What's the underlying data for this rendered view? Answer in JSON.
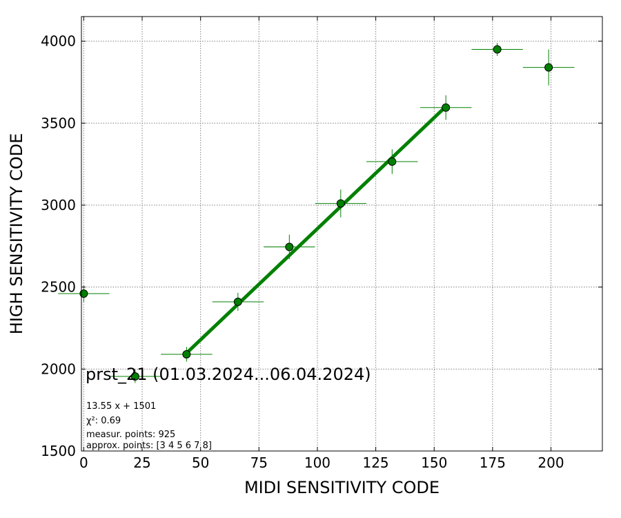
{
  "chart_data": {
    "type": "scatter",
    "title": "prst_21 (01.03.2024...06.04.2024)",
    "xlabel": "MIDI SENSITIVITY CODE",
    "ylabel": "HIGH SENSITIVITY CODE",
    "xlim": [
      -1,
      222
    ],
    "ylim": [
      1500,
      4150
    ],
    "xticks": [
      0,
      25,
      50,
      75,
      100,
      125,
      150,
      175,
      200
    ],
    "yticks": [
      1500,
      2000,
      2500,
      3000,
      3500,
      4000
    ],
    "grid": true,
    "color": "#008000",
    "points": [
      {
        "x": 0,
        "y": 2460,
        "xerr": 11,
        "yerr": 50
      },
      {
        "x": 22,
        "y": 1955,
        "xerr": 11,
        "yerr": 40
      },
      {
        "x": 44,
        "y": 2090,
        "xerr": 11,
        "yerr": 45
      },
      {
        "x": 66,
        "y": 2410,
        "xerr": 11,
        "yerr": 55
      },
      {
        "x": 88,
        "y": 2745,
        "xerr": 11,
        "yerr": 75
      },
      {
        "x": 110,
        "y": 3010,
        "xerr": 11,
        "yerr": 85
      },
      {
        "x": 132,
        "y": 3265,
        "xerr": 11,
        "yerr": 75
      },
      {
        "x": 155,
        "y": 3595,
        "xerr": 11,
        "yerr": 75
      },
      {
        "x": 177,
        "y": 3950,
        "xerr": 11,
        "yerr": 40
      },
      {
        "x": 199,
        "y": 3840,
        "xerr": 11,
        "yerr": 110
      }
    ],
    "fit": {
      "slope": 13.55,
      "intercept": 1501,
      "x_range": [
        44,
        155
      ]
    },
    "annotations": [
      "13.55 x + 1501",
      "χ²: 0.69",
      "measur. points: 925",
      "approx. points: [3 4 5 6 7 8]"
    ]
  }
}
